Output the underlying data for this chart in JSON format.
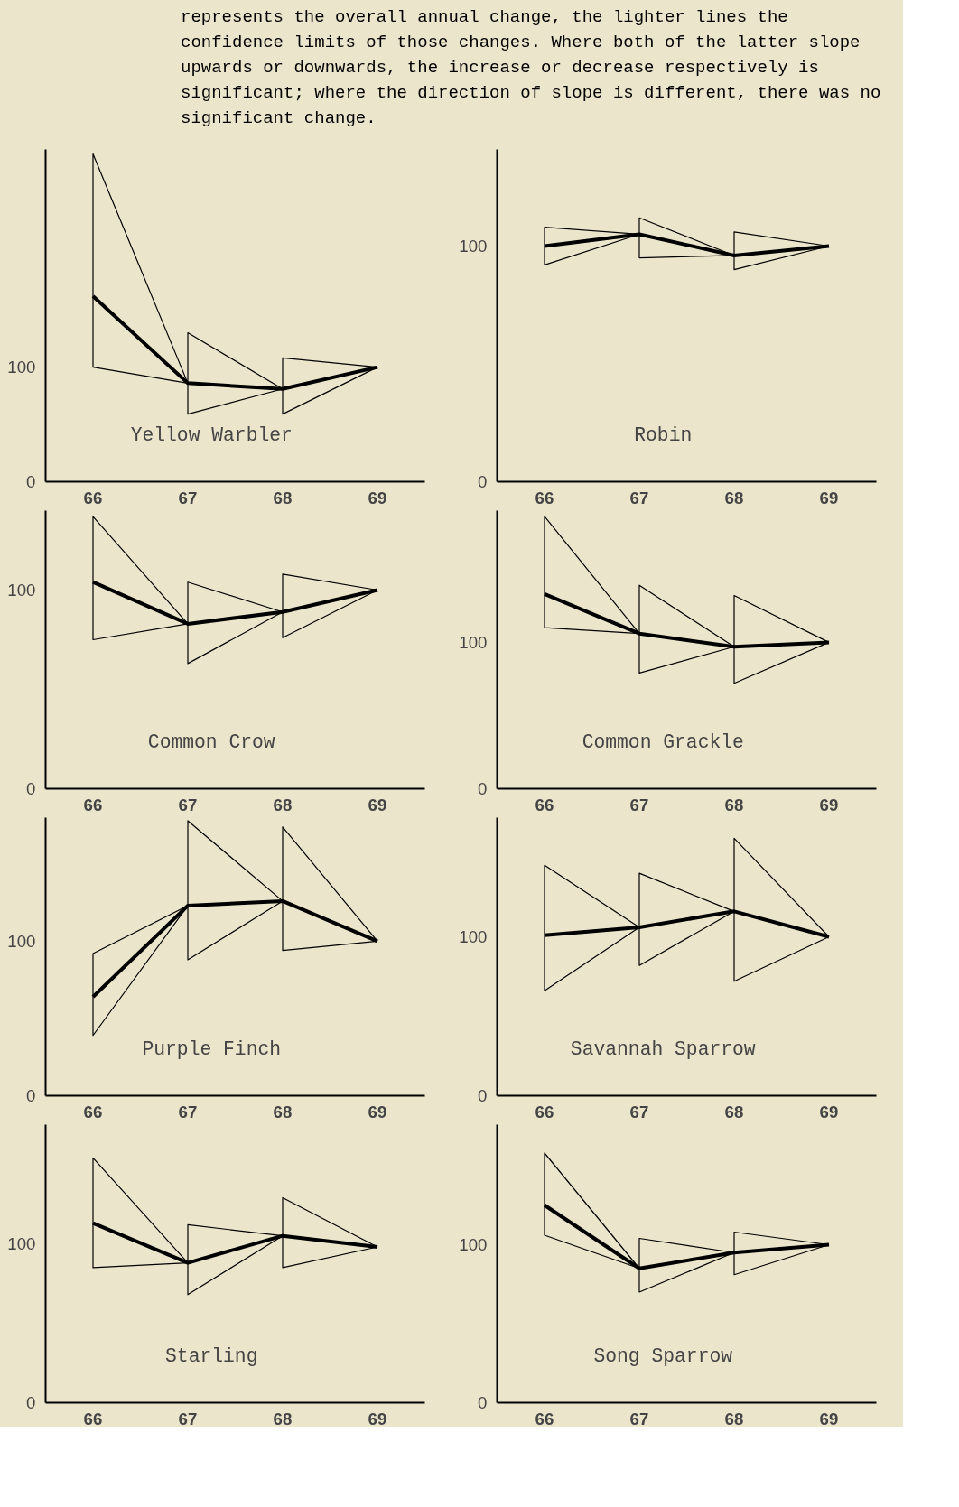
{
  "chart_data": [
    {
      "type": "line",
      "title": "Yellow Warbler",
      "annotations": [
        "represents the overall annual change, the lighter lines the confidence limits of those changes.  Where both of the latter slope upwards or downwards, the increase or decrease respectively is significant; where the direction of slope is different, there was no significant change."
      ],
      "x": [
        66,
        67,
        68,
        69
      ],
      "color": "#000000",
      "values": [
        162,
        86,
        81,
        100
      ],
      "errors": [
        [
          100,
          286
        ],
        [
          59,
          130
        ],
        [
          59,
          108
        ],
        null
      ],
      "xlim": [
        65.5,
        69.5
      ],
      "ylim": [
        0,
        290
      ],
      "xticks": [
        66,
        67,
        68,
        69
      ],
      "yticks": [
        0,
        100
      ]
    },
    {
      "type": "line",
      "title": "Robin",
      "x": [
        66,
        67,
        68,
        69
      ],
      "color": "#000000",
      "values": [
        100,
        105,
        96,
        100
      ],
      "errors": [
        [
          92,
          108
        ],
        [
          95,
          112
        ],
        [
          90,
          106
        ],
        null
      ],
      "xlim": [
        65.5,
        69.5
      ],
      "ylim": [
        0,
        141
      ],
      "xticks": [
        66,
        67,
        68,
        69
      ],
      "yticks": [
        0,
        100
      ]
    },
    {
      "type": "line",
      "title": "Common Crow",
      "x": [
        66,
        67,
        68,
        69
      ],
      "color": "#000000",
      "values": [
        104,
        83,
        89,
        100
      ],
      "errors": [
        [
          75,
          137
        ],
        [
          63,
          104
        ],
        [
          76,
          108
        ],
        null
      ],
      "xlim": [
        65.5,
        69.5
      ],
      "ylim": [
        0,
        140
      ],
      "xticks": [
        66,
        67,
        68,
        69
      ],
      "yticks": [
        0,
        100
      ]
    },
    {
      "type": "line",
      "title": "Common Grackle",
      "x": [
        66,
        67,
        68,
        69
      ],
      "color": "#000000",
      "values": [
        133,
        106,
        97,
        100
      ],
      "errors": [
        [
          110,
          186
        ],
        [
          79,
          139
        ],
        [
          72,
          132
        ],
        null
      ],
      "xlim": [
        65.5,
        69.5
      ],
      "ylim": [
        0,
        190
      ],
      "xticks": [
        66,
        67,
        68,
        69
      ],
      "yticks": [
        0,
        100
      ]
    },
    {
      "type": "line",
      "title": "Purple Finch",
      "x": [
        66,
        67,
        68,
        69
      ],
      "color": "#000000",
      "values": [
        64,
        123,
        126,
        100
      ],
      "errors": [
        [
          39,
          92
        ],
        [
          88,
          178
        ],
        [
          94,
          174
        ],
        null
      ],
      "xlim": [
        65.5,
        69.5
      ],
      "ylim": [
        0,
        180
      ],
      "xticks": [
        66,
        67,
        68,
        69
      ],
      "yticks": [
        0,
        100
      ]
    },
    {
      "type": "line",
      "title": "Savannah Sparrow",
      "x": [
        66,
        67,
        68,
        69
      ],
      "color": "#000000",
      "values": [
        101,
        106,
        116,
        100
      ],
      "errors": [
        [
          66,
          145
        ],
        [
          82,
          140
        ],
        [
          72,
          162
        ],
        null
      ],
      "xlim": [
        65.5,
        69.5
      ],
      "ylim": [
        0,
        175
      ],
      "xticks": [
        66,
        67,
        68,
        69
      ],
      "yticks": [
        0,
        100
      ]
    },
    {
      "type": "line",
      "title": "Starling",
      "x": [
        66,
        67,
        68,
        69
      ],
      "color": "#000000",
      "values": [
        113,
        88,
        105,
        98
      ],
      "errors": [
        [
          85,
          154
        ],
        [
          68,
          112
        ],
        [
          85,
          129
        ],
        null
      ],
      "xlim": [
        65.5,
        69.5
      ],
      "ylim": [
        0,
        175
      ],
      "xticks": [
        66,
        67,
        68,
        69
      ],
      "yticks": [
        0,
        100
      ]
    },
    {
      "type": "line",
      "title": "Song Sparrow",
      "x": [
        66,
        67,
        68,
        69
      ],
      "color": "#000000",
      "values": [
        125,
        85,
        95,
        100
      ],
      "errors": [
        [
          106,
          158
        ],
        [
          70,
          104
        ],
        [
          81,
          108
        ],
        null
      ],
      "xlim": [
        65.5,
        69.5
      ],
      "ylim": [
        0,
        176
      ],
      "xticks": [
        66,
        67,
        68,
        69
      ],
      "yticks": [
        0,
        100
      ]
    }
  ]
}
